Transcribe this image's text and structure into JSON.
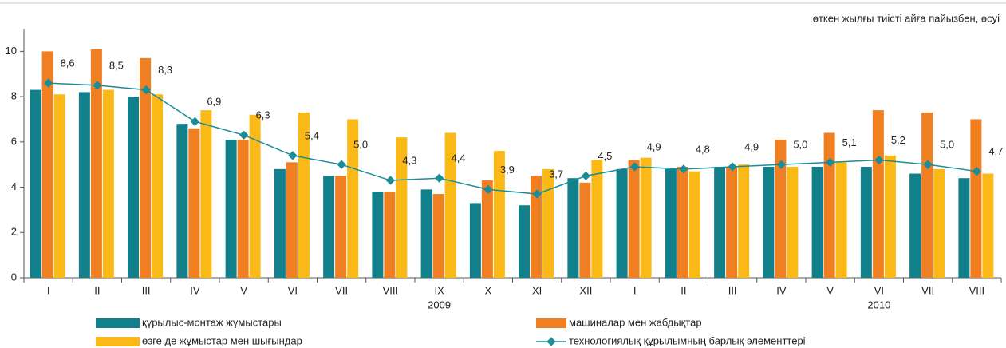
{
  "chart_data": {
    "type": "bar-line",
    "subtitle": "өткен жылғы тиісті айға пайызбен, өсуі",
    "categories": [
      "I",
      "II",
      "III",
      "IV",
      "V",
      "VI",
      "VII",
      "VIII",
      "IX",
      "X",
      "XI",
      "XII",
      "I",
      "II",
      "III",
      "IV",
      "V",
      "VI",
      "VII",
      "VIII"
    ],
    "years": [
      "2009",
      "2010"
    ],
    "ylim": [
      0,
      11
    ],
    "yticks": [
      0,
      2,
      4,
      6,
      8,
      10
    ],
    "grid": false,
    "series": [
      {
        "name": "құрылыс-монтаж жұмыстары",
        "type": "bar",
        "color": "#11808b",
        "values": [
          8.3,
          8.2,
          8.0,
          6.8,
          6.1,
          4.8,
          4.5,
          3.8,
          3.9,
          3.3,
          3.2,
          4.4,
          4.8,
          4.8,
          4.9,
          4.9,
          4.9,
          4.9,
          4.6,
          4.4
        ]
      },
      {
        "name": "машиналар мен жабдықтар",
        "type": "bar",
        "color": "#f07f22",
        "values": [
          10.0,
          10.1,
          9.7,
          6.6,
          6.1,
          5.1,
          4.5,
          3.8,
          3.7,
          4.3,
          4.5,
          4.2,
          5.2,
          4.9,
          4.9,
          6.1,
          6.4,
          7.4,
          7.3,
          7.0
        ]
      },
      {
        "name": "өзге де жұмыстар мен шығындар",
        "type": "bar",
        "color": "#fbb918",
        "values": [
          8.1,
          8.3,
          8.1,
          7.4,
          7.2,
          7.3,
          7.0,
          6.2,
          6.4,
          5.6,
          4.8,
          5.2,
          5.3,
          4.7,
          5.0,
          4.9,
          5.1,
          5.4,
          4.8,
          4.6
        ]
      },
      {
        "name": "технологиялық құрылымның барлық элементтері",
        "type": "line",
        "color": "#1a8d99",
        "values": [
          8.6,
          8.5,
          8.3,
          6.9,
          6.3,
          5.4,
          5.0,
          4.3,
          4.4,
          3.9,
          3.7,
          4.5,
          4.9,
          4.8,
          4.9,
          5.0,
          5.1,
          5.2,
          5.0,
          4.7
        ],
        "value_labels": [
          "8,6",
          "8,5",
          "8,3",
          "6,9",
          "6,3",
          "5,4",
          "5,0",
          "4,3",
          "4,4",
          "3,9",
          "3,7",
          "4,5",
          "4,9",
          "4,8",
          "4,9",
          "5,0",
          "5,1",
          "5,2",
          "5,0",
          "4,7"
        ]
      }
    ]
  }
}
